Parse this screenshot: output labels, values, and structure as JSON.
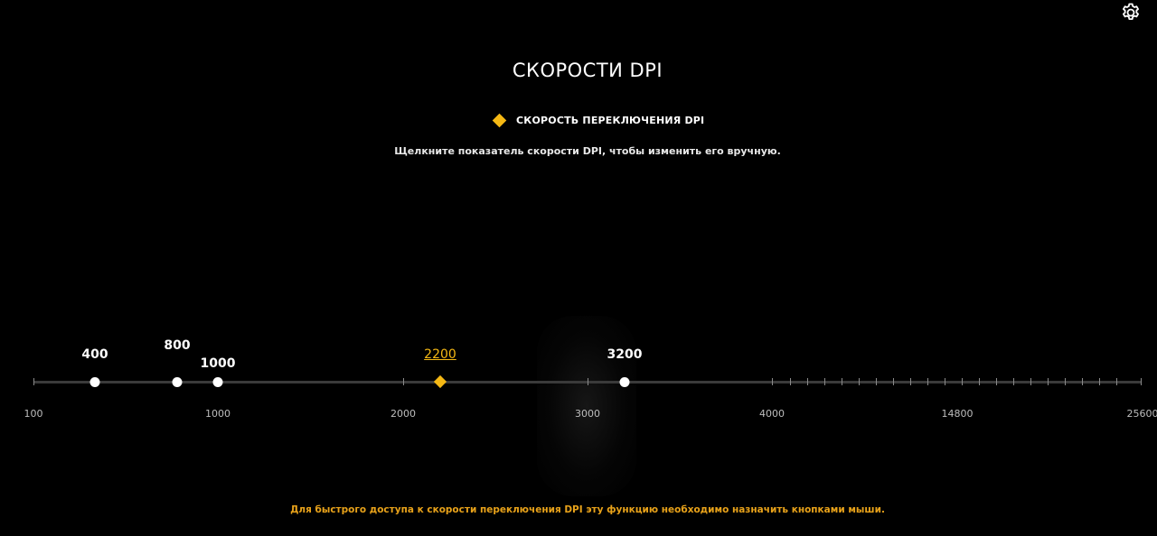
{
  "title": "СКОРОСТИ DPI",
  "legend": {
    "label": "СКОРОСТЬ ПЕРЕКЛЮЧЕНИЯ DPI",
    "color": "#f5b814"
  },
  "hint": "Щелкните показатель скорости DPI, чтобы изменить его вручную.",
  "footer": "Для быстрого доступа к скорости переключения DPI эту функцию необходимо назначить кнопками мыши.",
  "icons": {
    "settings": "gear-icon"
  },
  "colors": {
    "accent": "#f5b814",
    "track": "#3a3a3a",
    "stage": "#ffffff"
  },
  "scale": {
    "labels": [
      "100",
      "1000",
      "2000",
      "3000",
      "4000",
      "14800",
      "25600"
    ]
  },
  "stages": [
    {
      "value": "400",
      "kind": "stage"
    },
    {
      "value": "800",
      "kind": "stage"
    },
    {
      "value": "1000",
      "kind": "stage"
    },
    {
      "value": "2200",
      "kind": "switch",
      "active": true
    },
    {
      "value": "3200",
      "kind": "stage"
    }
  ]
}
